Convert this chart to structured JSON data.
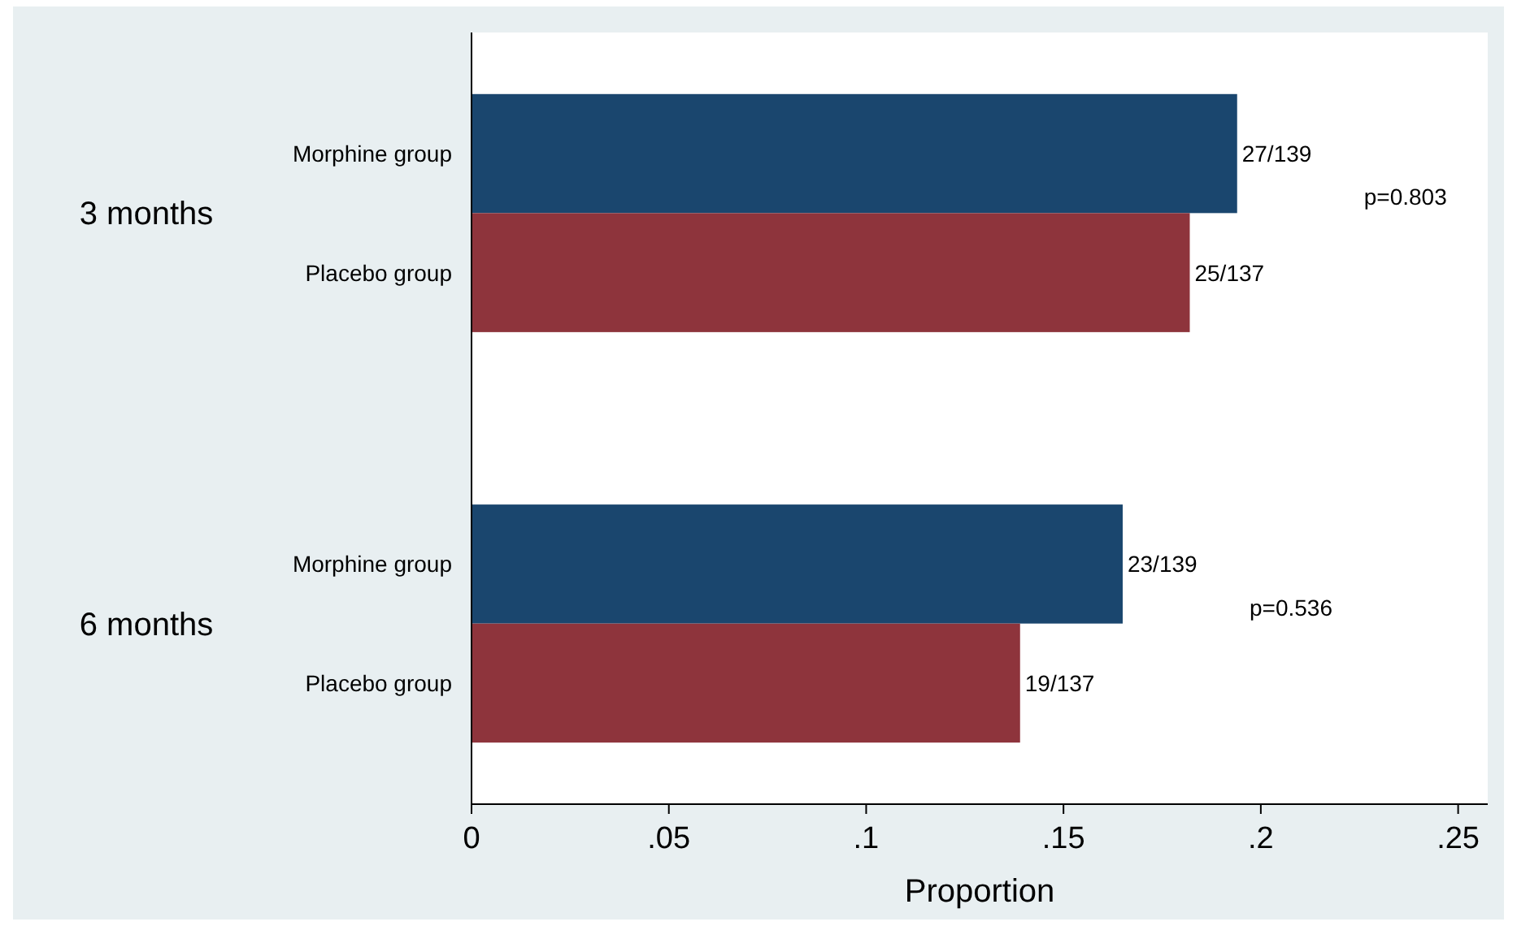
{
  "chart_data": {
    "type": "bar",
    "orientation": "horizontal",
    "xlabel": "Proportion",
    "categories": [
      "3 months",
      "6 months"
    ],
    "series": [
      {
        "name": "Morphine group",
        "color": "#1a466e",
        "values": [
          0.194,
          0.165
        ],
        "value_labels": [
          "27/139",
          "23/139"
        ]
      },
      {
        "name": "Placebo group",
        "color": "#8e343c",
        "values": [
          0.182,
          0.139
        ],
        "value_labels": [
          "25/137",
          "19/137"
        ]
      }
    ],
    "xlim": [
      0,
      0.2575
    ],
    "xticks": [
      0,
      {
        "value": 0.05,
        "label": ".05"
      },
      {
        "value": 0.1,
        "label": ".1"
      },
      {
        "value": 0.15,
        "label": ".15"
      },
      {
        "value": 0.2,
        "label": ".2"
      },
      {
        "value": 0.25,
        "label": ".25"
      }
    ],
    "annotations": [
      "p=0.803",
      "p=0.536"
    ],
    "grid": false
  }
}
